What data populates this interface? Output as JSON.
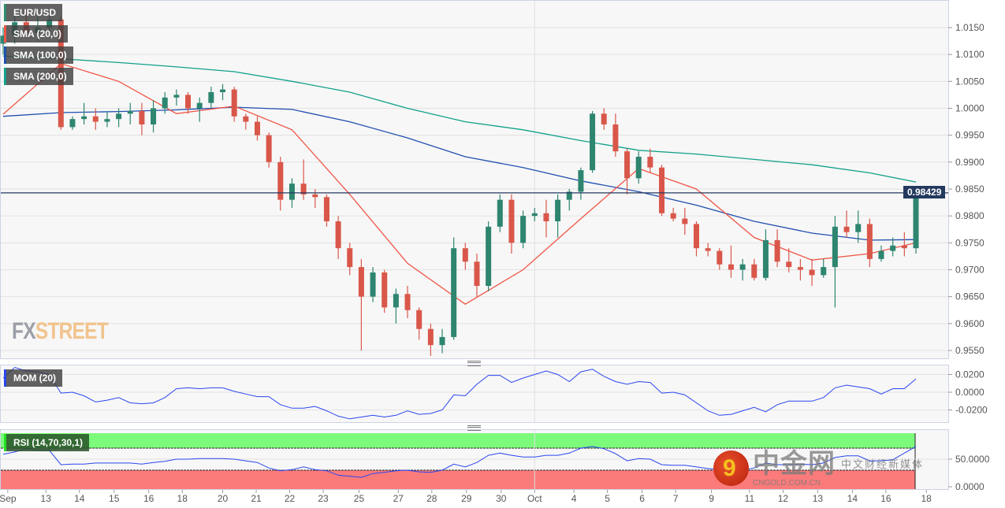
{
  "chart_data": {
    "type": "candlestick",
    "symbol": "EUR/USD",
    "legend": [
      {
        "label": "EUR/USD",
        "color": "#2e8b70"
      },
      {
        "label": "SMA (20,0)",
        "color": "#f05545"
      },
      {
        "label": "SMA (100,0)",
        "color": "#1f4fae"
      },
      {
        "label": "SMA (200,0)",
        "color": "#11a08a"
      }
    ],
    "colors": {
      "up": "#2e8570",
      "down": "#d9574a",
      "sma20": "#f05545",
      "sma100": "#1f4fae",
      "sma200": "#11a08a",
      "mom": "#2a46f0",
      "rsi": "#2a46f0",
      "price_line": "#23395e",
      "overbought": "#7cfa7c",
      "oversold": "#fb7b7b"
    },
    "current_price": "0.98429",
    "ylim": [
      0.9535,
      1.0195
    ],
    "yticks": [
      "1.0150",
      "1.0100",
      "1.0050",
      "1.0000",
      "0.9950",
      "0.9900",
      "0.9850",
      "0.9800",
      "0.9750",
      "0.9700",
      "0.9650",
      "0.9600",
      "0.9550"
    ],
    "xticks": [
      "Sep",
      "13",
      "14",
      "15",
      "16",
      "18",
      "20",
      "21",
      "22",
      "23",
      "25",
      "27",
      "28",
      "29",
      "30",
      "Oct",
      "4",
      "5",
      "6",
      "7",
      "9",
      "11",
      "12",
      "13",
      "14",
      "16",
      "18"
    ],
    "ohlc": [
      [
        1.012,
        1.015,
        1.01,
        1.0135
      ],
      [
        1.0135,
        1.0175,
        1.012,
        1.016
      ],
      [
        1.016,
        1.0185,
        1.013,
        1.014
      ],
      [
        1.014,
        1.017,
        1.0125,
        1.015
      ],
      [
        1.015,
        1.018,
        1.014,
        1.0165
      ],
      [
        1.0165,
        1.017,
        0.996,
        0.9965
      ],
      [
        0.9965,
        0.9985,
        0.996,
        0.998
      ],
      [
        0.998,
        1.001,
        0.997,
        0.9985
      ],
      [
        0.9985,
        1.0,
        0.996,
        0.9975
      ],
      [
        0.9975,
        0.9995,
        0.9965,
        0.998
      ],
      [
        0.998,
        1.0,
        0.9965,
        0.999
      ],
      [
        0.999,
        1.001,
        0.997,
        0.9995
      ],
      [
        0.9995,
        1.001,
        0.995,
        0.997
      ],
      [
        0.997,
        1.0015,
        0.9955,
        1.0
      ],
      [
        1.0,
        1.003,
        0.999,
        1.002
      ],
      [
        1.002,
        1.0035,
        1.0005,
        1.0025
      ],
      [
        1.0025,
        1.003,
        0.999,
        1.0
      ],
      [
        1.0,
        1.002,
        0.9975,
        1.001
      ],
      [
        1.001,
        1.004,
        1.0,
        1.003
      ],
      [
        1.003,
        1.0045,
        1.0015,
        1.0035
      ],
      [
        1.0035,
        1.004,
        0.9975,
        0.9985
      ],
      [
        0.9985,
        0.999,
        0.996,
        0.9975
      ],
      [
        0.9975,
        0.9985,
        0.994,
        0.995
      ],
      [
        0.995,
        0.9955,
        0.989,
        0.99
      ],
      [
        0.99,
        0.991,
        0.981,
        0.983
      ],
      [
        0.983,
        0.987,
        0.9815,
        0.986
      ],
      [
        0.986,
        0.9905,
        0.983,
        0.984
      ],
      [
        0.984,
        0.985,
        0.9815,
        0.9835
      ],
      [
        0.9835,
        0.984,
        0.978,
        0.979
      ],
      [
        0.979,
        0.98,
        0.972,
        0.974
      ],
      [
        0.974,
        0.975,
        0.969,
        0.9705
      ],
      [
        0.9705,
        0.972,
        0.955,
        0.965
      ],
      [
        0.965,
        0.9705,
        0.964,
        0.9695
      ],
      [
        0.9695,
        0.97,
        0.962,
        0.963
      ],
      [
        0.963,
        0.9665,
        0.96,
        0.9655
      ],
      [
        0.9655,
        0.967,
        0.961,
        0.9625
      ],
      [
        0.9625,
        0.963,
        0.957,
        0.959
      ],
      [
        0.959,
        0.96,
        0.954,
        0.956
      ],
      [
        0.956,
        0.959,
        0.9545,
        0.9575
      ],
      [
        0.9575,
        0.976,
        0.957,
        0.974
      ],
      [
        0.974,
        0.975,
        0.97,
        0.9715
      ],
      [
        0.9715,
        0.973,
        0.965,
        0.967
      ],
      [
        0.967,
        0.979,
        0.966,
        0.978
      ],
      [
        0.978,
        0.984,
        0.977,
        0.983
      ],
      [
        0.983,
        0.984,
        0.973,
        0.975
      ],
      [
        0.975,
        0.981,
        0.974,
        0.98
      ],
      [
        0.98,
        0.9815,
        0.979,
        0.9805
      ],
      [
        0.9805,
        0.983,
        0.976,
        0.979
      ],
      [
        0.979,
        0.984,
        0.976,
        0.983
      ],
      [
        0.983,
        0.985,
        0.981,
        0.9845
      ],
      [
        0.9845,
        0.989,
        0.983,
        0.9885
      ],
      [
        0.9885,
        0.9995,
        0.988,
        0.999
      ],
      [
        0.999,
        1.0,
        0.996,
        0.997
      ],
      [
        0.997,
        0.999,
        0.991,
        0.992
      ],
      [
        0.992,
        0.9925,
        0.984,
        0.987
      ],
      [
        0.987,
        0.992,
        0.986,
        0.991
      ],
      [
        0.991,
        0.9925,
        0.988,
        0.989
      ],
      [
        0.989,
        0.9895,
        0.98,
        0.9805
      ],
      [
        0.9805,
        0.9815,
        0.979,
        0.9795
      ],
      [
        0.9795,
        0.9815,
        0.9765,
        0.9785
      ],
      [
        0.9785,
        0.979,
        0.9725,
        0.974
      ],
      [
        0.974,
        0.975,
        0.9725,
        0.9735
      ],
      [
        0.9735,
        0.974,
        0.97,
        0.971
      ],
      [
        0.971,
        0.9745,
        0.9685,
        0.97
      ],
      [
        0.97,
        0.972,
        0.968,
        0.971
      ],
      [
        0.971,
        0.972,
        0.968,
        0.9685
      ],
      [
        0.9685,
        0.9775,
        0.968,
        0.9755
      ],
      [
        0.9755,
        0.9775,
        0.9705,
        0.9715
      ],
      [
        0.9715,
        0.974,
        0.9695,
        0.9705
      ],
      [
        0.9705,
        0.972,
        0.968,
        0.97
      ],
      [
        0.97,
        0.972,
        0.967,
        0.969
      ],
      [
        0.969,
        0.972,
        0.9685,
        0.9705
      ],
      [
        0.9705,
        0.98,
        0.963,
        0.978
      ],
      [
        0.978,
        0.981,
        0.976,
        0.977
      ],
      [
        0.977,
        0.981,
        0.975,
        0.9785
      ],
      [
        0.9785,
        0.9795,
        0.9705,
        0.972
      ],
      [
        0.972,
        0.9745,
        0.9715,
        0.9735
      ],
      [
        0.9735,
        0.976,
        0.9725,
        0.9745
      ],
      [
        0.9745,
        0.977,
        0.9725,
        0.974
      ],
      [
        0.974,
        0.985,
        0.973,
        0.9843
      ]
    ],
    "sma_sample_candle": [
      0,
      5,
      10,
      15,
      20,
      25,
      30,
      35,
      40,
      45,
      50,
      55,
      60,
      65,
      70,
      75,
      79
    ],
    "sma20": [
      0.9989,
      1.0083,
      1.005,
      0.999,
      1.0004,
      0.996,
      0.984,
      0.9712,
      0.9636,
      0.97,
      0.9795,
      0.9888,
      0.985,
      0.976,
      0.9718,
      0.973,
      0.975
    ],
    "sma100": [
      0.9985,
      0.9992,
      0.9994,
      0.9997,
      1.0002,
      0.9998,
      0.9975,
      0.9945,
      0.991,
      0.989,
      0.9865,
      0.9845,
      0.982,
      0.979,
      0.9768,
      0.9755,
      0.9756
    ],
    "sma200": [
      1.0097,
      1.0092,
      1.0085,
      1.0077,
      1.0068,
      1.005,
      1.003,
      1.0,
      0.9975,
      0.996,
      0.994,
      0.9922,
      0.9915,
      0.9905,
      0.9895,
      0.988,
      0.9863
    ],
    "mom": {
      "label": "MOM (20)",
      "yticks": [
        "0.0200",
        "0.0000",
        "-0.0200"
      ],
      "values": [
        0.016,
        0.028,
        0.024,
        0.023,
        0.02,
        -0.001,
        0.0,
        -0.004,
        -0.011,
        -0.009,
        -0.006,
        -0.012,
        -0.013,
        -0.012,
        -0.006,
        0.004,
        0.005,
        0.004,
        0.005,
        0.005,
        0.001,
        -0.002,
        -0.005,
        -0.005,
        -0.014,
        -0.018,
        -0.018,
        -0.016,
        -0.021,
        -0.027,
        -0.03,
        -0.028,
        -0.026,
        -0.028,
        -0.026,
        -0.021,
        -0.025,
        -0.024,
        -0.02,
        -0.003,
        -0.004,
        0.009,
        0.019,
        0.019,
        0.011,
        0.016,
        0.02,
        0.024,
        0.02,
        0.012,
        0.023,
        0.026,
        0.018,
        0.012,
        0.009,
        0.012,
        0.011,
        -0.001,
        0.0,
        -0.003,
        -0.012,
        -0.021,
        -0.026,
        -0.025,
        -0.021,
        -0.017,
        -0.022,
        -0.014,
        -0.01,
        -0.01,
        -0.01,
        -0.006,
        0.005,
        0.008,
        0.006,
        0.004,
        -0.002,
        0.004,
        0.004,
        0.015
      ]
    },
    "rsi": {
      "label": "RSI (14,70,30,1)",
      "overbought": 70,
      "oversold": 30,
      "yticks": [
        "50.0000",
        "0.0000"
      ],
      "values": [
        59,
        63,
        69,
        66,
        66,
        40,
        41,
        41,
        43,
        43,
        43,
        43,
        41,
        44,
        46,
        50,
        50,
        51,
        51,
        51,
        50,
        47,
        44,
        34,
        29,
        31,
        36,
        31,
        29,
        21,
        19,
        17,
        24,
        26,
        29,
        30,
        27,
        26,
        30,
        41,
        36,
        44,
        57,
        61,
        57,
        54,
        54,
        57,
        57,
        61,
        70,
        73,
        69,
        60,
        47,
        51,
        50,
        40,
        39,
        39,
        36,
        33,
        31,
        31,
        30,
        34,
        43,
        40,
        40,
        41,
        40,
        43,
        53,
        56,
        56,
        47,
        47,
        49,
        61,
        73
      ]
    }
  },
  "watermark": {
    "fx": "FX",
    "street": "STREET"
  },
  "cngold": {
    "mark": "9",
    "name": "中金网",
    "domain": "CNGOLD.COM.CN",
    "tagline": "中文财经新媒体"
  }
}
